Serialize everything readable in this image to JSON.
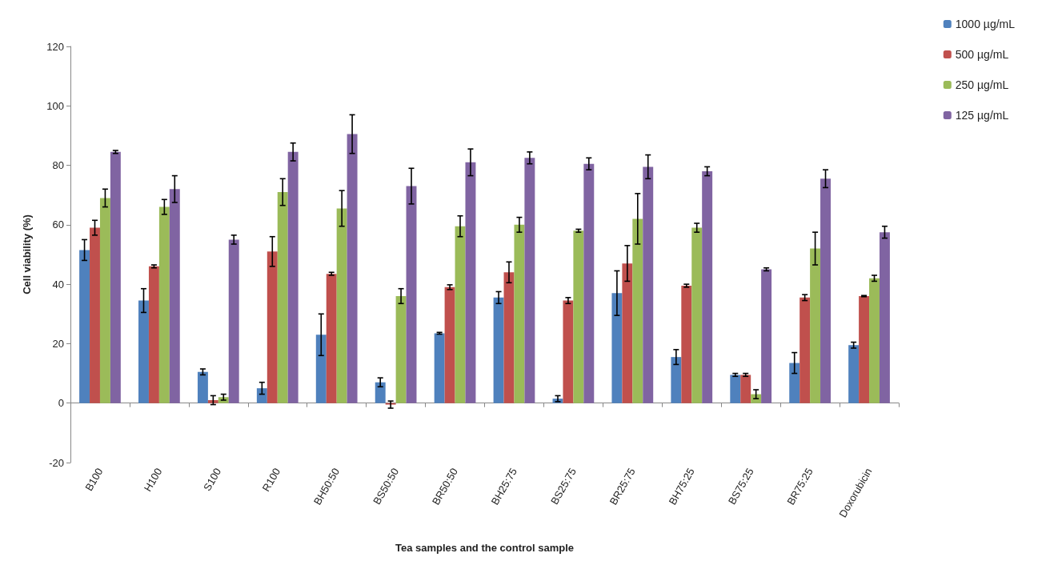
{
  "chart_data": {
    "type": "bar",
    "xlabel": "Tea samples and the control sample",
    "ylabel": "Cell viability (%)",
    "categories": [
      "B100",
      "H100",
      "S100",
      "R100",
      "BH50:50",
      "BS50:50",
      "BR50:50",
      "BH25:75",
      "BS25:75",
      "BR25:75",
      "BH75:25",
      "BS75:25",
      "BR75:25",
      "Doxorubicin"
    ],
    "series": [
      {
        "name": "1000 µg/mL",
        "color": "#4f81bd",
        "values": [
          51.5,
          34.5,
          10.5,
          5,
          23,
          7,
          23.5,
          35.5,
          1.5,
          37,
          15.5,
          9.5,
          13.5,
          19.5
        ],
        "errors": [
          3.5,
          4,
          1,
          2,
          7,
          1.5,
          0.3,
          2,
          1,
          7.5,
          2.5,
          0.5,
          3.5,
          1
        ]
      },
      {
        "name": "500 µg/mL",
        "color": "#c0504d",
        "values": [
          59,
          46,
          1,
          51,
          43.5,
          -0.5,
          39,
          44,
          34.5,
          47,
          39.5,
          9.5,
          35.5,
          36
        ],
        "errors": [
          2.5,
          0.5,
          1.5,
          5,
          0.5,
          1.2,
          0.8,
          3.5,
          1,
          6,
          0.5,
          0.5,
          1,
          0.2
        ]
      },
      {
        "name": "250 µg/mL",
        "color": "#9bbb59",
        "values": [
          69,
          66,
          2,
          71,
          65.5,
          36,
          59.5,
          60,
          58,
          62,
          59,
          3,
          52,
          42
        ],
        "errors": [
          3,
          2.5,
          1,
          4.5,
          6,
          2.5,
          3.5,
          2.5,
          0.5,
          8.5,
          1.5,
          1.5,
          5.5,
          1
        ]
      },
      {
        "name": "125 µg/mL",
        "color": "#8064a2",
        "values": [
          84.5,
          72,
          55,
          84.5,
          90.5,
          73,
          81,
          82.5,
          80.5,
          79.5,
          78,
          45,
          75.5,
          57.5
        ],
        "errors": [
          0.5,
          4.5,
          1.5,
          3,
          6.5,
          6,
          4.5,
          2,
          2,
          4,
          1.5,
          0.5,
          3,
          2
        ]
      }
    ],
    "ylim": [
      -20,
      120
    ],
    "yticks": [
      -20,
      0,
      20,
      40,
      60,
      80,
      100,
      120
    ],
    "legend": "top right"
  }
}
